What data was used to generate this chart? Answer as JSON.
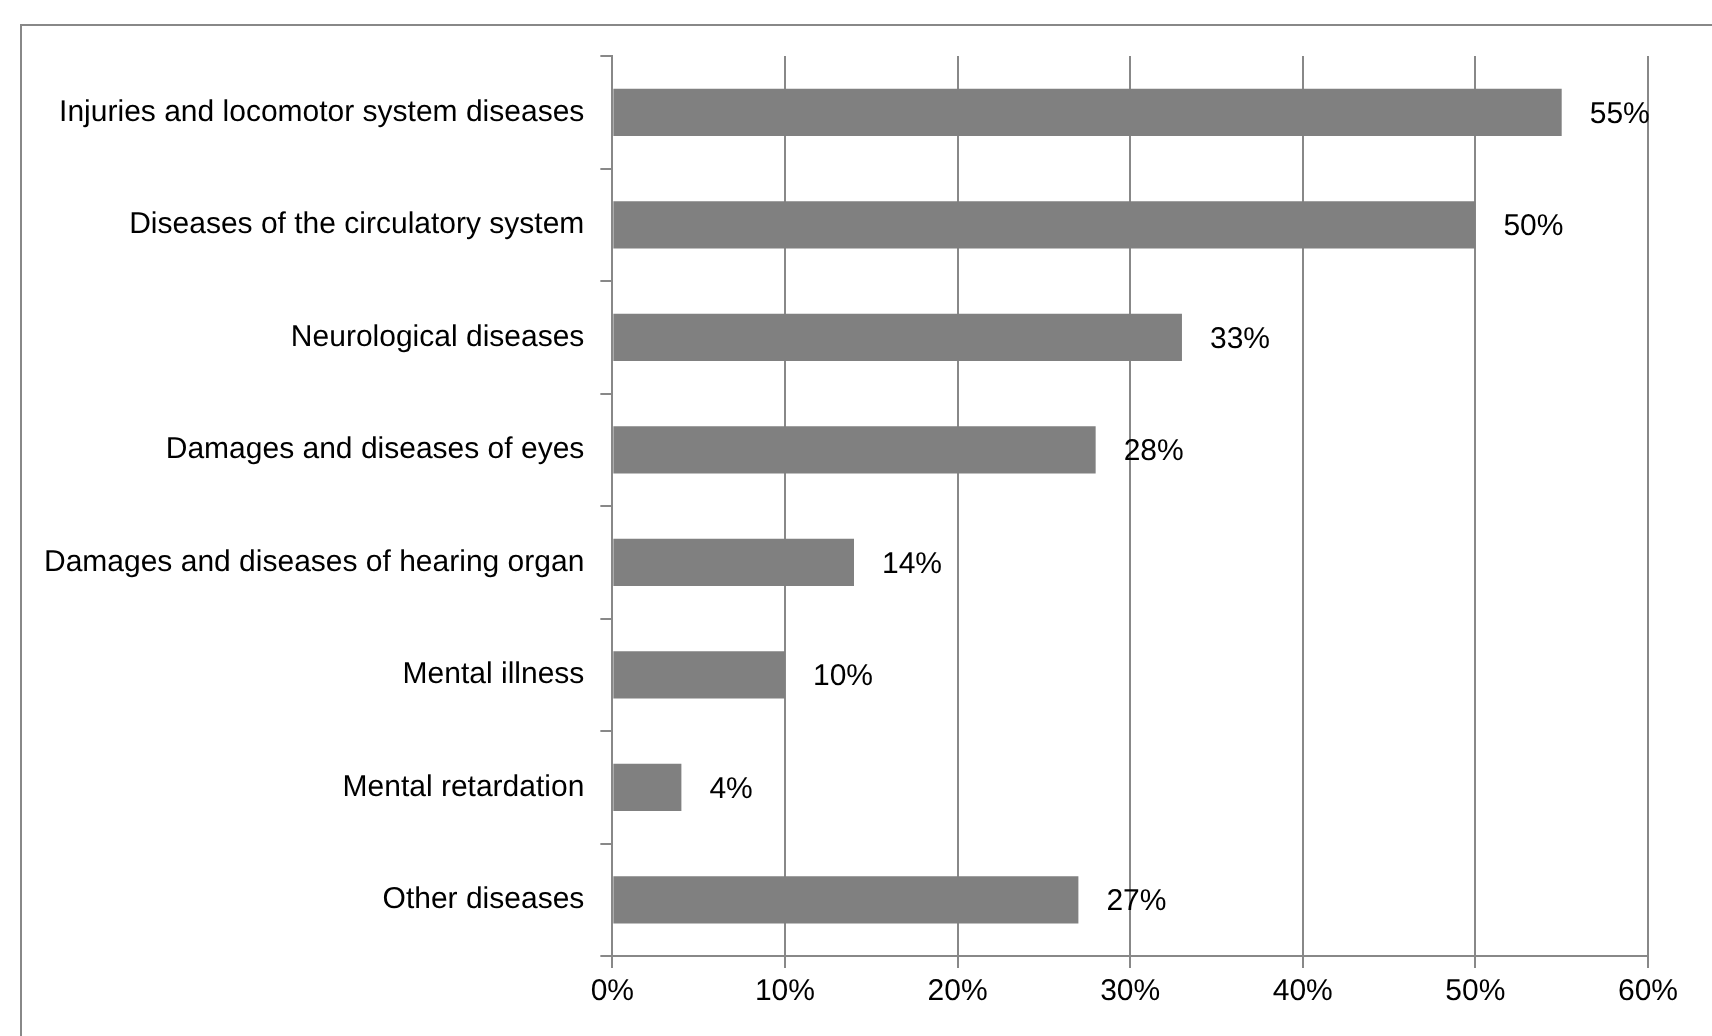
{
  "chart_data": {
    "type": "bar",
    "orientation": "horizontal",
    "categories": [
      "Injuries and locomotor system diseases",
      "Diseases of the circulatory system",
      "Neurological diseases",
      "Damages and diseases of eyes",
      "Damages and diseases of hearing organ",
      "Mental illness",
      "Mental retardation",
      "Other diseases"
    ],
    "values": [
      55,
      50,
      33,
      28,
      14,
      10,
      4,
      27
    ],
    "color": "#808080",
    "xlim": [
      0,
      60
    ],
    "xticks": [
      {
        "value": 0,
        "label": "0%"
      },
      {
        "value": 10,
        "label": "10%"
      },
      {
        "value": 20,
        "label": "20%"
      },
      {
        "value": 30,
        "label": "30%"
      },
      {
        "value": 40,
        "label": "40%"
      },
      {
        "value": 50,
        "label": "50%"
      },
      {
        "value": 60,
        "label": "60%"
      }
    ],
    "value_labels": [
      "55%",
      "50%",
      "33%",
      "28%",
      "14%",
      "10%",
      "4%",
      "27%"
    ],
    "grid": "x",
    "legend": false
  }
}
